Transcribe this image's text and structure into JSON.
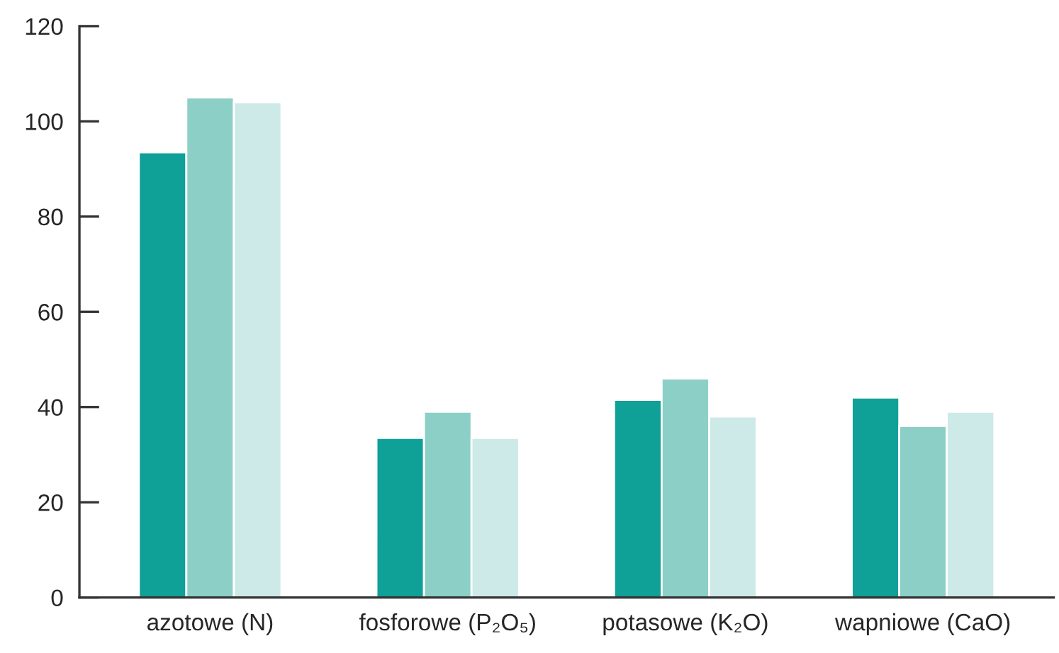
{
  "chart_data": {
    "type": "bar",
    "categories": [
      "azotowe (N)",
      "fosforowe (P₂O₅)",
      "potasowe (K₂O)",
      "wapniowe (CaO)"
    ],
    "series": [
      {
        "color": "#0fa098",
        "values": [
          93.5,
          33.5,
          41.5,
          42
        ]
      },
      {
        "color": "#8ccfc6",
        "values": [
          105,
          39,
          46,
          36
        ]
      },
      {
        "color": "#cde9e8",
        "values": [
          104,
          33.5,
          38,
          39
        ]
      }
    ],
    "ylim": [
      0,
      120
    ],
    "yticks": [
      0,
      20,
      40,
      60,
      80,
      100,
      120
    ],
    "grid": false
  }
}
